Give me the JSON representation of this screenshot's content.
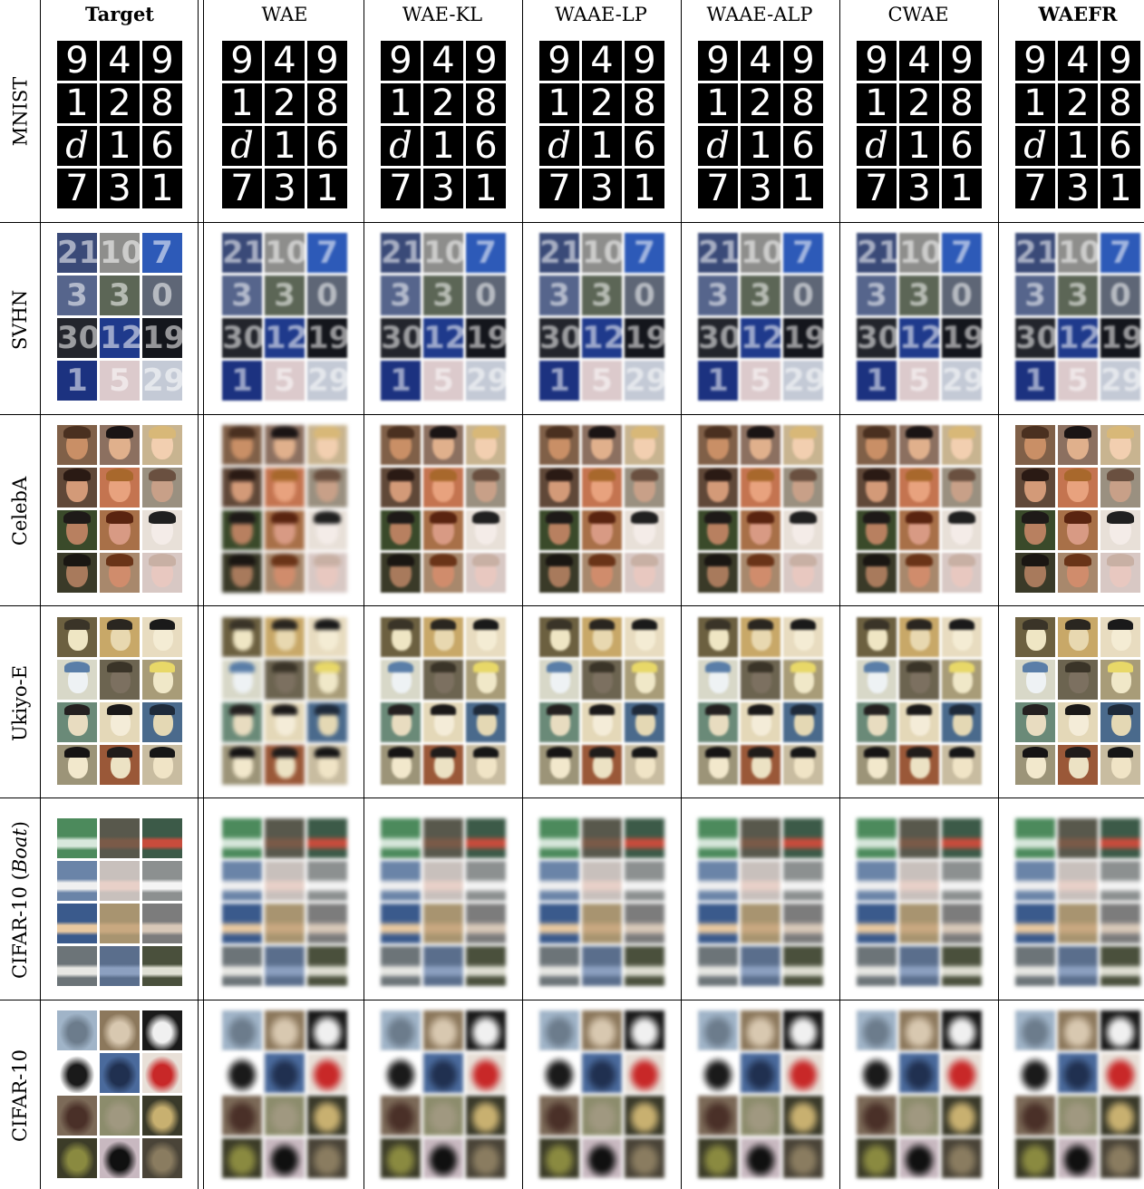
{
  "columns": [
    {
      "label": "Target",
      "bold": true
    },
    {
      "label": "WAE",
      "bold": false
    },
    {
      "label": "WAE-KL",
      "bold": false
    },
    {
      "label": "WAAE-LP",
      "bold": false
    },
    {
      "label": "WAAE-ALP",
      "bold": false
    },
    {
      "label": "CWAE",
      "bold": false
    },
    {
      "label": "WAEFR",
      "bold": true
    }
  ],
  "rows": [
    {
      "label": "MNIST",
      "kind": "mnist"
    },
    {
      "label": "SVHN",
      "kind": "svhn"
    },
    {
      "label": "CelebA",
      "kind": "celeba"
    },
    {
      "label": "Ukiyo-E",
      "kind": "ukiyoe"
    },
    {
      "label_prefix": "CIFAR-10 (",
      "label_italic": "Boat",
      "label_suffix": ")",
      "kind": "cifar-boat"
    },
    {
      "label": "CIFAR-10",
      "kind": "cifar"
    }
  ],
  "mnist_digits": [
    "9",
    "4",
    "9",
    "1",
    "2",
    "8",
    "d",
    "1",
    "6",
    "7",
    "3",
    "1"
  ],
  "svhn_digits": [
    "21",
    "10",
    "7",
    "3",
    "3",
    "0",
    "30",
    "12",
    "19",
    "1",
    "5",
    "29"
  ],
  "palettes": {
    "svhn_bg": [
      "#3a4a78",
      "#8e8e8c",
      "#2d5ab8",
      "#56658c",
      "#5c6656",
      "#5e6676",
      "#23252c",
      "#1f3a8c",
      "#14161c",
      "#1c3280",
      "#dccacc",
      "#c4cad6"
    ],
    "celeba_skin": [
      "#c98f66",
      "#e0b08c",
      "#f2cfb0",
      "#d39a78",
      "#e8a27e",
      "#c8a088",
      "#b88060",
      "#d89a84",
      "#f4ece8",
      "#a87a5c",
      "#d08c6c",
      "#e8c8c0"
    ],
    "celeba_hair": [
      "#4a3020",
      "#1a1414",
      "#d8b878",
      "#2a1a14",
      "#a8682c",
      "#6a5040",
      "#1e1a18",
      "#5a2410",
      "#202020",
      "#1a1612",
      "#6a3418",
      "#c8b0a4"
    ],
    "celeba_bg": [
      "#806048",
      "#8c7060",
      "#c8b490",
      "#604838",
      "#c47450",
      "#9a9080",
      "#3a4a2a",
      "#a87048",
      "#e8e0d8",
      "#3a3a28",
      "#a8886c",
      "#d8c8c4"
    ],
    "ukiyoe_skin": [
      "#efe6c4",
      "#e8d8b0",
      "#f4ecd4",
      "#eef2f4",
      "#7c7060",
      "#f0e8c8",
      "#e8dcc0",
      "#f4ecd8",
      "#e4d8b4",
      "#f2e8cc",
      "#ece2c4",
      "#f0e4c6"
    ],
    "ukiyoe_hair": [
      "#3a3428",
      "#2a2620",
      "#1a1a1a",
      "#5a7ea8",
      "#3a3428",
      "#e8d868",
      "#242020",
      "#1a1818",
      "#1e2a3a",
      "#161414",
      "#201c1a",
      "#161616"
    ],
    "ukiyoe_bg": [
      "#6c6040",
      "#c8a868",
      "#e8dcc0",
      "#d8d8c8",
      "#6c6450",
      "#a89c78",
      "#6a8a78",
      "#e4d8b8",
      "#4a6a8c",
      "#9c9478",
      "#9a5838",
      "#c8bca0"
    ],
    "boat_bg": [
      "#4c8a5c",
      "#58584c",
      "#3c5a48",
      "#6a84a8",
      "#c8c0bc",
      "#8c9090",
      "#3a5a8c",
      "#a89470",
      "#7c7c7c",
      "#6c7478",
      "#5a6e8c",
      "#4a503c"
    ],
    "boat_fg": [
      "#d8e8dc",
      "#7a5a48",
      "#c84c3c",
      "#f0f0f0",
      "#e8d0c8",
      "#f4f4f4",
      "#e8c8a0",
      "#c8a880",
      "#d8c8b8",
      "#e8e8e4",
      "#8ca0c0",
      "#e0e0d4"
    ],
    "cifar_bg": [
      "#a0b4c8",
      "#8c785c",
      "#1a1a1a",
      "#ffffff",
      "#4a6a9c",
      "#e8e0d8",
      "#7c6a58",
      "#8c8c6c",
      "#3a3a2a",
      "#3c3c28",
      "#c8b8c0",
      "#4a4438"
    ],
    "cifar_fg": [
      "#6c7c8c",
      "#d8c8b0",
      "#f0f0f0",
      "#1a1a1a",
      "#203050",
      "#c82828",
      "#4a3028",
      "#a09880",
      "#c8b070",
      "#8a8a40",
      "#101010",
      "#8a7c60"
    ]
  }
}
